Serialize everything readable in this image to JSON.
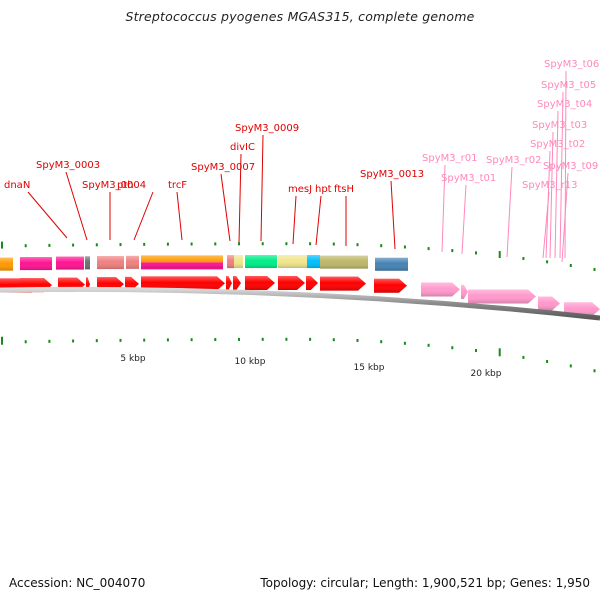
{
  "title": "Streptococcus pyogenes MGAS315, complete genome",
  "footer": {
    "accession": "Accession: NC_004070",
    "summary": "Topology: circular; Length: 1,900,521 bp; Genes: 1,950"
  },
  "colors": {
    "cds_red": "#ff0000",
    "rna_pink": "#ff99cc",
    "gc_tick": "#1a8a1a",
    "backbone": "#888888"
  },
  "scale_labels": [
    {
      "label": "5 kbp",
      "kbp": 5
    },
    {
      "label": "10 kbp",
      "kbp": 10
    },
    {
      "label": "15 kbp",
      "kbp": 15
    },
    {
      "label": "20 kbp",
      "kbp": 20
    }
  ],
  "gene_labels": [
    {
      "name": "dnaN",
      "color": "red"
    },
    {
      "name": "SpyM3_0003",
      "color": "red"
    },
    {
      "name": "SpyM3_0004",
      "color": "red"
    },
    {
      "name": "pth",
      "color": "red"
    },
    {
      "name": "trcF",
      "color": "red"
    },
    {
      "name": "SpyM3_0007",
      "color": "red"
    },
    {
      "name": "divIC",
      "color": "red"
    },
    {
      "name": "SpyM3_0009",
      "color": "red"
    },
    {
      "name": "mesJ",
      "color": "red"
    },
    {
      "name": "hpt",
      "color": "red"
    },
    {
      "name": "ftsH",
      "color": "red"
    },
    {
      "name": "SpyM3_0013",
      "color": "red"
    },
    {
      "name": "SpyM3_r01",
      "color": "pink"
    },
    {
      "name": "SpyM3_t01",
      "color": "pink"
    },
    {
      "name": "SpyM3_r02",
      "color": "pink"
    },
    {
      "name": "SpyM3_t06",
      "color": "pink"
    },
    {
      "name": "SpyM3_t05",
      "color": "pink"
    },
    {
      "name": "SpyM3_t04",
      "color": "pink"
    },
    {
      "name": "SpyM3_t03",
      "color": "pink"
    },
    {
      "name": "SpyM3_t02",
      "color": "pink"
    },
    {
      "name": "SpyM3_t09",
      "color": "pink"
    },
    {
      "name": "SpyM3_r13",
      "color": "pink"
    }
  ],
  "cog_blocks": [
    {
      "category": "orange",
      "color": "#ff9900"
    },
    {
      "category": "magenta",
      "color": "#ff1493"
    },
    {
      "category": "magenta",
      "color": "#ff1493"
    },
    {
      "category": "gray",
      "color": "#707070"
    },
    {
      "category": "salmon",
      "color": "#f08080"
    },
    {
      "category": "salmon",
      "color": "#f08080"
    },
    {
      "category": "orange-magenta",
      "color": "#ff9900"
    },
    {
      "category": "salmon",
      "color": "#f08080"
    },
    {
      "category": "khaki",
      "color": "#f0e68c"
    },
    {
      "category": "spring-green",
      "color": "#00ee88"
    },
    {
      "category": "khaki",
      "color": "#f0e68c"
    },
    {
      "category": "deep-sky-blue",
      "color": "#00bfff"
    },
    {
      "category": "dark-khaki",
      "color": "#bdb76b"
    },
    {
      "category": "steel-blue",
      "color": "#4682b4"
    }
  ]
}
